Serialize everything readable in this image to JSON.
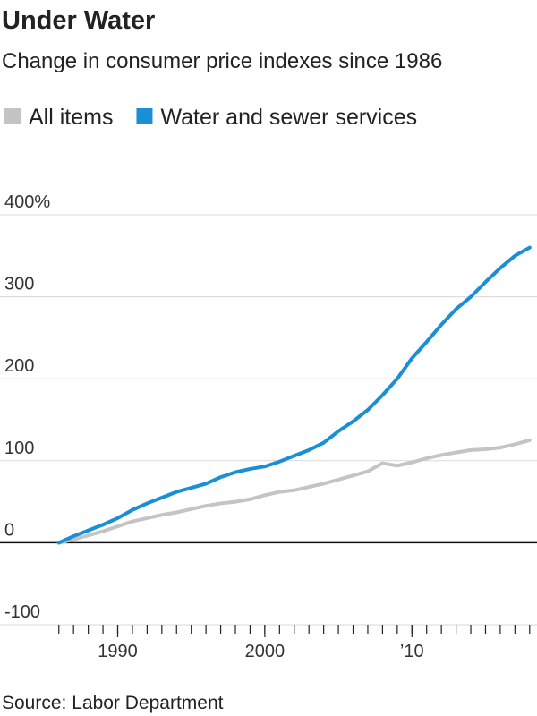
{
  "chart_data": {
    "type": "line",
    "title": "Under Water",
    "subtitle": "Change in consumer price indexes since 1986",
    "source": "Source: Labor Department",
    "x": [
      1986,
      1987,
      1988,
      1989,
      1990,
      1991,
      1992,
      1993,
      1994,
      1995,
      1996,
      1997,
      1998,
      1999,
      2000,
      2001,
      2002,
      2003,
      2004,
      2005,
      2006,
      2007,
      2008,
      2009,
      2010,
      2011,
      2012,
      2013,
      2014,
      2015,
      2016,
      2017,
      2018
    ],
    "series": [
      {
        "name": "All items",
        "color": "#c4c4c4",
        "values": [
          0,
          4,
          9,
          14,
          20,
          26,
          30,
          34,
          37,
          41,
          45,
          48,
          50,
          53,
          58,
          62,
          64,
          68,
          72,
          77,
          82,
          87,
          97,
          94,
          98,
          103,
          107,
          110,
          113,
          114,
          116,
          120,
          125
        ]
      },
      {
        "name": "Water and sewer services",
        "color": "#1a8fd6",
        "values": [
          0,
          8,
          15,
          22,
          30,
          40,
          48,
          55,
          62,
          67,
          72,
          80,
          86,
          90,
          93,
          99,
          106,
          113,
          122,
          136,
          148,
          162,
          180,
          200,
          225,
          245,
          266,
          285,
          300,
          318,
          335,
          350,
          360
        ]
      }
    ],
    "xlim": [
      1982,
      2018.5
    ],
    "xticks": [
      1990,
      2000,
      {
        "value": 2010,
        "label": "’10"
      }
    ],
    "xminor_ticks": [
      1986,
      1987,
      1988,
      1989,
      1990,
      1991,
      1992,
      1993,
      1994,
      1995,
      1996,
      1997,
      1998,
      1999,
      2000,
      2001,
      2002,
      2003,
      2004,
      2005,
      2006,
      2007,
      2008,
      2009,
      2010,
      2011,
      2012,
      2013,
      2014,
      2015,
      2016,
      2017,
      2018
    ],
    "ylim": [
      -100,
      400
    ],
    "yticks": [
      {
        "value": 400,
        "label": "400%"
      },
      300,
      200,
      100,
      0,
      -100
    ],
    "grid": true
  }
}
